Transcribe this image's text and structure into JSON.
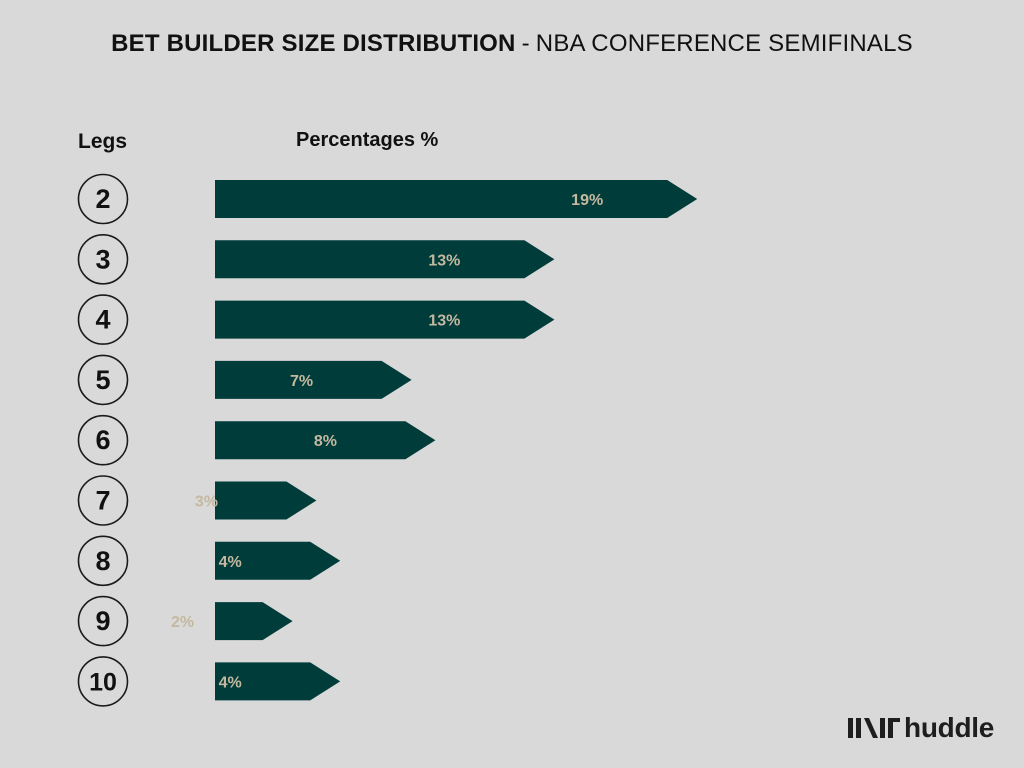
{
  "header": {
    "title_bold": "BET BUILDER SIZE DISTRIBUTION",
    "title_separator": "-",
    "title_rest": "NBA CONFERENCE SEMIFINALS"
  },
  "columns": {
    "legs_label": "Legs",
    "percent_label": "Percentages %"
  },
  "brand": {
    "name": "huddle",
    "icon": "huddle-logo-icon"
  },
  "colors": {
    "bar": "#003c3a",
    "bar_label": "#c4b9a0",
    "background": "#d9d9d9",
    "circle_stroke": "#1a1a1a",
    "text": "#111111"
  },
  "chart_data": {
    "type": "bar",
    "orientation": "horizontal",
    "categories": [
      "2",
      "3",
      "4",
      "5",
      "6",
      "7",
      "8",
      "9",
      "10"
    ],
    "values": [
      19,
      13,
      13,
      7,
      8,
      3,
      4,
      2,
      4
    ],
    "value_labels": [
      "19%",
      "13%",
      "13%",
      "7%",
      "8%",
      "3%",
      "4%",
      "2%",
      "4%"
    ],
    "xlabel": "Percentages %",
    "ylabel": "Legs",
    "unit": "%",
    "grid": false
  }
}
